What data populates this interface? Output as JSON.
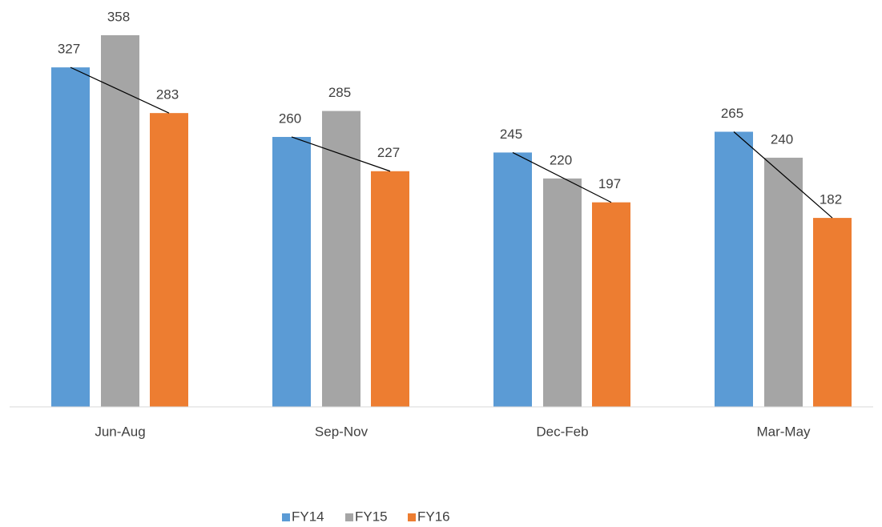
{
  "chart_data": {
    "type": "bar",
    "categories": [
      "Jun-Aug",
      "Sep-Nov",
      "Dec-Feb",
      "Mar-May"
    ],
    "series": [
      {
        "name": "FY14",
        "color": "#5b9bd5",
        "values": [
          327,
          260,
          245,
          265
        ]
      },
      {
        "name": "FY15",
        "color": "#a5a5a5",
        "values": [
          358,
          285,
          220,
          240
        ]
      },
      {
        "name": "FY16",
        "color": "#ed7d31",
        "values": [
          283,
          227,
          197,
          182
        ]
      }
    ],
    "ylim": [
      0,
      400
    ],
    "legend": "bottom"
  }
}
